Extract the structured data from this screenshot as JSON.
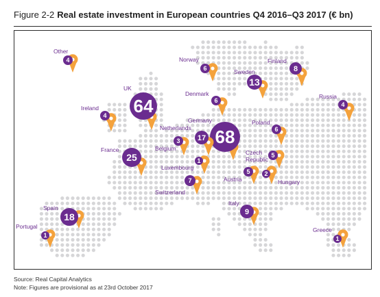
{
  "figure": {
    "label": "Figure 2-2",
    "title": "Real estate investment in European countries Q4 2016–Q3 2017 (€ bn)"
  },
  "colors": {
    "purple": "#6a2c8f",
    "orange": "#f4a23c",
    "dots": "#d6d6d8",
    "label": "#6a2c8f",
    "frame": "#2b2b2b"
  },
  "chart_data": {
    "type": "map-bubble",
    "unit": "€ bn",
    "countries": [
      {
        "name": "Other",
        "value": 4
      },
      {
        "name": "Norway",
        "value": 6
      },
      {
        "name": "Sweden",
        "value": 13
      },
      {
        "name": "Finland",
        "value": 8
      },
      {
        "name": "UK",
        "value": 64
      },
      {
        "name": "Denmark",
        "value": 6
      },
      {
        "name": "Russia",
        "value": 4
      },
      {
        "name": "Ireland",
        "value": 4
      },
      {
        "name": "Germany",
        "value": 68
      },
      {
        "name": "Netherlands",
        "value": 17
      },
      {
        "name": "Poland",
        "value": 6
      },
      {
        "name": "Belgium",
        "value": 3
      },
      {
        "name": "France",
        "value": 25
      },
      {
        "name": "Luxembourg",
        "value": 1
      },
      {
        "name": "Czech Republic",
        "value": 5
      },
      {
        "name": "Austria",
        "value": 5
      },
      {
        "name": "Hungary",
        "value": 2
      },
      {
        "name": "Switzerland",
        "value": 7
      },
      {
        "name": "Italy",
        "value": 9
      },
      {
        "name": "Spain",
        "value": 18
      },
      {
        "name": "Portugal",
        "value": 1
      },
      {
        "name": "Greece",
        "value": 1
      }
    ]
  },
  "footnotes": {
    "source": "Source: Real Capital Analytics",
    "note": "Note: Figures are provisional as at 23rd October 2017"
  }
}
